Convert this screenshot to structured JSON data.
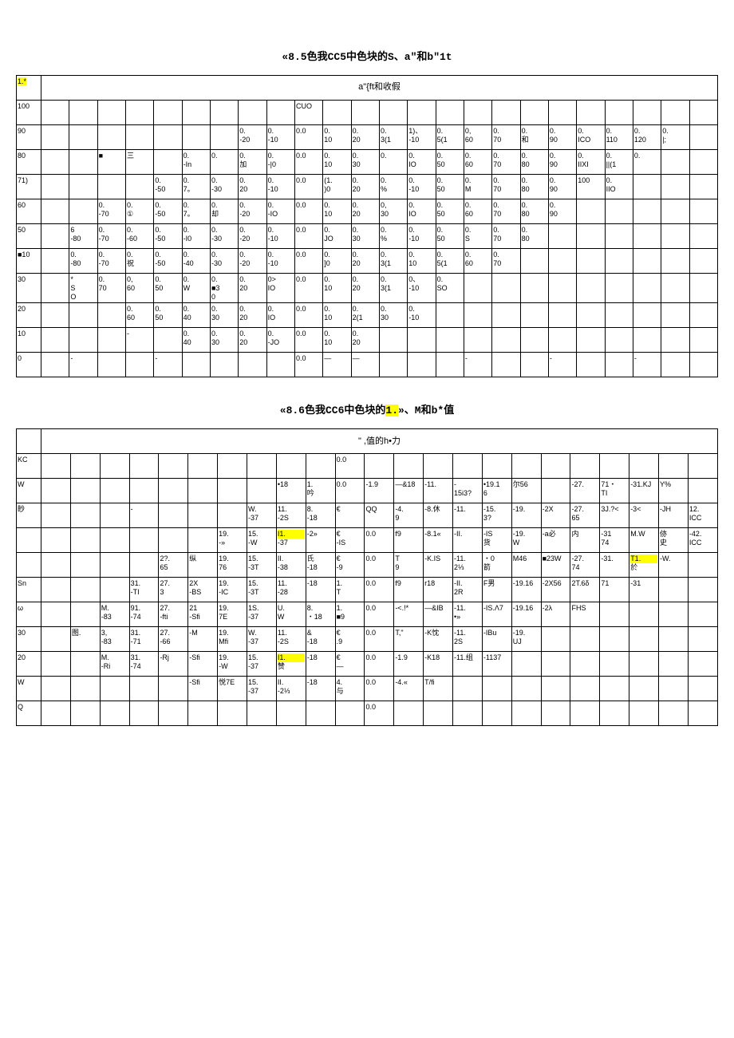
{
  "table1": {
    "title_prefix": "«8.5色我CC5中色块的S、a\"和b\"1t",
    "header_cell": "1.*",
    "header_span": "a\"{ft和收假",
    "row_labels": [
      "100",
      "90",
      "80",
      "71)",
      "60",
      "50",
      "■10",
      "30",
      "20",
      "10",
      "0"
    ],
    "rows": [
      [
        "",
        "",
        "",
        "",
        "",
        "",
        "",
        "",
        "",
        "CUO",
        "",
        "",
        "",
        "",
        "",
        "",
        "",
        "",
        "",
        "",
        "",
        "",
        "",
        ""
      ],
      [
        "",
        "",
        "",
        "",
        "",
        "",
        "",
        "0.\n-20",
        "0.\n-10",
        "0.0",
        "0.\n10",
        "0.\n20",
        "0.\n3(1",
        "1)、\n-10",
        "0.\n5(1",
        "0,\n60",
        "0.\n70",
        "0.\n和",
        "0.\n90",
        "0.\nICO",
        "0.\n110",
        "0.\n120",
        "0.\n|;"
      ],
      [
        "",
        "",
        "■",
        "三",
        "",
        "0.\n-In",
        "0.",
        "0.\n加",
        "0.\n-|0",
        "0.0",
        "0.\n10",
        "0.\n30",
        "0.",
        "0.\nIO",
        "0.\n50",
        "0.\n60",
        "0.\n70",
        "0.\n80",
        "0.\n90",
        "0.\nIIXI",
        "0.\n||(1",
        "0.",
        ""
      ],
      [
        "",
        "",
        "",
        "",
        "0.\n-50",
        "0.\n7。",
        "0.\n-30",
        "0.\n20",
        "0.\n-10",
        "0.0",
        "(1.\n)0",
        "0.\n20",
        "0.\n%",
        "0.\n-10",
        "0.\n50",
        "0.\nM",
        "0.\n70",
        "0.\n80",
        "0.\n90",
        "100",
        "0.\nIIO",
        "",
        ""
      ],
      [
        "",
        "",
        "0.\n-70",
        "0.\n①",
        "0.\n-50",
        "0.\n7。",
        "0.\n却",
        "0.\n-20",
        "0.\n-IO",
        "0.0",
        "0.\n10",
        "0.\n20",
        "0,\n30",
        "0.\nIO",
        "0.\n50",
        "0.\n60",
        "0.\n70",
        "0.\n80",
        "0.\n90",
        "",
        "",
        "",
        ""
      ],
      [
        "",
        "6\n-80",
        "0.\n-70",
        "0.\n-60",
        "0.\n-50",
        "0.\n-I0",
        "0.\n-30",
        "0.\n-20",
        "0.\n-10",
        "0.0",
        "0.\nJO",
        "0.\n30",
        "0.\n%",
        "0.\n-10",
        "0.\n50",
        "0.\nS",
        "0.\n70",
        "0.\n80",
        "",
        "",
        "",
        "",
        ""
      ],
      [
        "",
        "0.\n-80",
        "0.\n-70",
        "0.\n祝",
        "0.\n-50",
        "0.\n-40",
        "0.\n-30",
        "0.\n-20",
        "0.\n-10",
        "0.0",
        "0.\n]0",
        "0.\n20",
        "0.\n3(1",
        "0.\n10",
        "0.\n5(1",
        "0.\n60",
        "0.\n70",
        "",
        "",
        "",
        "",
        "",
        ""
      ],
      [
        "",
        "*\nS\nO",
        "0.\n70",
        "0,\n60",
        "0.\n50",
        "0.\nW",
        "0.\n■3\n0",
        "0.\n20",
        "0>\nIO",
        "0.0",
        "0.\n10",
        "0.\n20",
        "0.\n3(1",
        "0、\n-10",
        "0.\nSO",
        "",
        "",
        "",
        "",
        "",
        "",
        "",
        ""
      ],
      [
        "",
        "",
        "",
        "0.\n60",
        "0.\n50",
        "0.\n40",
        "0.\n30",
        "0.\n20",
        "0.\nIO",
        "0.0",
        "0.\n10",
        "0.\n2(1",
        "0.\n30",
        "0.\n-10",
        "",
        "",
        "",
        "",
        "",
        "",
        "",
        "",
        ""
      ],
      [
        "",
        "",
        "",
        "-",
        "",
        "0.\n40",
        "0.\n30",
        "0.\n20",
        "0.\n-JO",
        "0.0",
        "0.\n10",
        "0.\n20",
        "",
        "",
        "",
        "",
        "",
        "",
        "",
        "",
        "",
        "",
        ""
      ],
      [
        "",
        "-",
        "",
        "",
        "-",
        "",
        "",
        "",
        "",
        "0.0",
        "—",
        "—",
        "",
        "",
        "",
        "-",
        "",
        "",
        "-",
        "",
        "",
        "-",
        ""
      ]
    ]
  },
  "table2": {
    "title_prefix": "«8.6色我CC6中色块的",
    "title_hl": "1.",
    "title_suffix": "»、M和b*值",
    "header_span": "\" ,值的h•力",
    "row_labels": [
      "KC",
      "W",
      "眇",
      "",
      "",
      "Sn",
      "ω",
      "30",
      "20",
      "W",
      "Q"
    ],
    "rows": [
      [
        "",
        "",
        "",
        "",
        "",
        "",
        "",
        "",
        "",
        "",
        "0.0",
        "",
        "",
        "",
        "",
        "",
        "",
        "",
        "",
        "",
        "",
        "",
        ""
      ],
      [
        "",
        "",
        "",
        "",
        "",
        "",
        "",
        "",
        "•18",
        "1.\n吟",
        "0.0",
        "-1.9",
        "—&18",
        "-11.",
        "-\n15i3?",
        "•19.1\n6",
        "尔56",
        "",
        "-27.",
        "71・\nTI",
        "-31.KJ",
        "Y%",
        ""
      ],
      [
        "",
        "",
        "",
        "-",
        "",
        "",
        "",
        "W.\n-37",
        "11.\n-2S",
        "8.\n-18",
        "€",
        "QQ",
        "-4.\n9",
        "-8.休",
        "-11.",
        "-15.\n3?",
        "-19.",
        "-2X",
        "-27.\n65",
        "3J.?<",
        "-3<",
        "-JH",
        "12.\nICC"
      ],
      [
        "",
        "",
        "",
        "",
        "",
        "",
        "19.\n-»",
        "15.\n-W",
        "I1.\n-37",
        "-2»",
        "€\n-IS",
        "0.0",
        "f9",
        "-8.1«",
        "-II.",
        "-IS\n货",
        "-19.\nW",
        "-a必",
        "内",
        "-31\n74",
        "M.W",
        "㑊\n史",
        "-42.\nICC"
      ],
      [
        "",
        "",
        "",
        "",
        "2?.\n65",
        "纵",
        "19.\n76",
        "15.\n-3T",
        "II.\n-38",
        "氏\n-18",
        "€\n-9",
        "0.0",
        "T\n9",
        "-K.IS",
        "-11.\n2⅓",
        "・0\n箭",
        "M46",
        "■23W",
        "-27.\n74",
        "-31.",
        "T1.\n於",
        "-W.",
        ""
      ],
      [
        "",
        "",
        "",
        "31.\n-TI",
        "27.\n3",
        "2X\n-BS",
        "19.\n-IC",
        "15.\n-3T",
        "11.\n-28",
        "-18",
        "1.\nT",
        "0.0",
        "f9",
        "r18",
        "-II.\n2R",
        "F男",
        "-19.16",
        "-2X56",
        "2T.6δ",
        "71",
        "-31",
        "",
        ""
      ],
      [
        "",
        "",
        "M.\n-83",
        "91.\n-74",
        "27.\n-fti",
        "21\n-Sfi",
        "19.\n7E",
        "1S.\n-37",
        "U.\nW",
        "8.\n・18",
        "1.\n■9",
        "0.0",
        "-<.!*",
        "—&IB",
        "-11.\n•»",
        "-IS.Λ7",
        "-19.16",
        "-2λ",
        "FHS",
        "",
        "",
        "",
        ""
      ],
      [
        "",
        "图.",
        "3,\n-83",
        "31.\n-71",
        "27.\n-66",
        "-M",
        "19.\nMfi",
        "W.\n-37",
        "11.\n-2S",
        "&\n-18",
        "€\n.9",
        "0.0",
        "T,\"",
        "-K忱",
        "-11.\n2S",
        "-IBu",
        "-19.\nUJ",
        "",
        "",
        "",
        "",
        "",
        ""
      ],
      [
        "",
        "",
        "M.\n-Ri",
        "31.\n-74",
        "-Rj",
        "-Sfi",
        "19.\n-W",
        "15.\n-37",
        "I1.\n赞",
        "-18",
        "€\n—",
        "0.0",
        "-1.9",
        "-K18",
        "-11.组",
        "-1137",
        "",
        "",
        "",
        "",
        "",
        "",
        ""
      ],
      [
        "",
        "",
        "",
        "",
        "",
        "-Sfi",
        "悦7E",
        "15.\n-37",
        "II.\n-2⅓",
        "-18",
        "4.\n与",
        "0.0",
        "-4.«",
        "T/fi",
        "",
        "",
        "",
        "",
        "",
        "",
        "",
        "",
        ""
      ],
      [
        "",
        "",
        "",
        "",
        "",
        "",
        "",
        "",
        "",
        "",
        "",
        "0.0",
        "",
        "",
        "",
        "",
        "",
        "",
        "",
        "",
        "",
        "",
        ""
      ]
    ],
    "highlight_cells": [
      [
        3,
        8
      ],
      [
        8,
        8
      ],
      [
        4,
        20
      ]
    ]
  },
  "style": {
    "highlight_bg": "#ffff00",
    "border_color": "#000000",
    "background": "#ffffff",
    "font_size_body": 9,
    "font_size_title": 13
  }
}
